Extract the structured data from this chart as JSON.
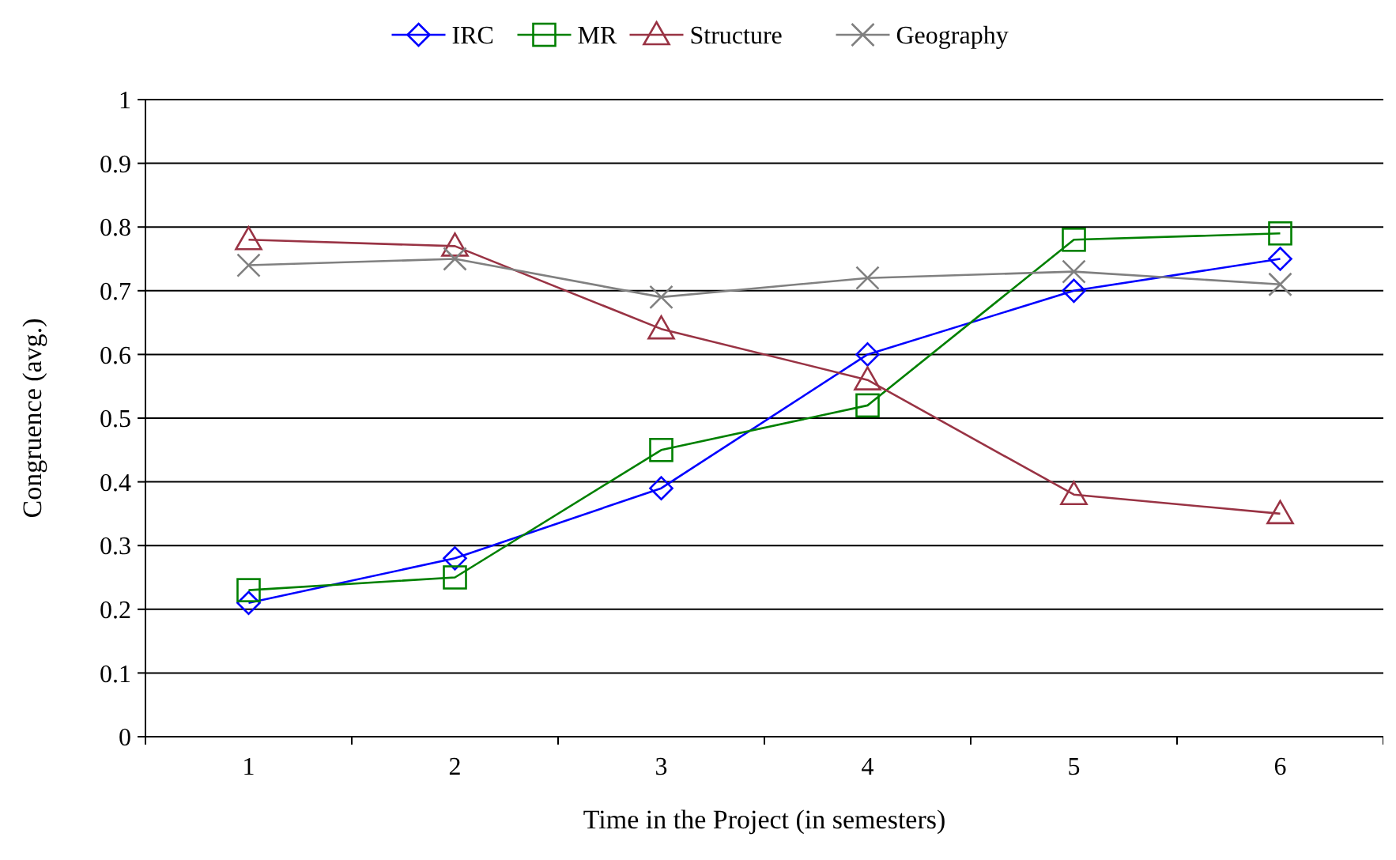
{
  "chart_data": {
    "type": "line",
    "xlabel": "Time in the Project (in semesters)",
    "ylabel": "Congruence (avg.)",
    "categories": [
      "1",
      "2",
      "3",
      "4",
      "5",
      "6"
    ],
    "ylim": [
      0,
      1
    ],
    "yticks": [
      0,
      0.1,
      0.2,
      0.3,
      0.4,
      0.5,
      0.6,
      0.7,
      0.8,
      0.9,
      1
    ],
    "grid": "y",
    "legend": "top",
    "series": [
      {
        "name": "IRC",
        "color": "#0000ff",
        "marker": "diamond",
        "values": [
          0.21,
          0.28,
          0.39,
          0.6,
          0.7,
          0.75
        ]
      },
      {
        "name": "MR",
        "color": "#008000",
        "marker": "square",
        "values": [
          0.23,
          0.25,
          0.45,
          0.52,
          0.78,
          0.79
        ]
      },
      {
        "name": "Structure",
        "color": "#993344",
        "marker": "triangle",
        "values": [
          0.78,
          0.77,
          0.64,
          0.56,
          0.38,
          0.35
        ]
      },
      {
        "name": "Geography",
        "color": "#808080",
        "marker": "cross",
        "values": [
          0.74,
          0.75,
          0.69,
          0.72,
          0.73,
          0.71
        ]
      }
    ]
  }
}
